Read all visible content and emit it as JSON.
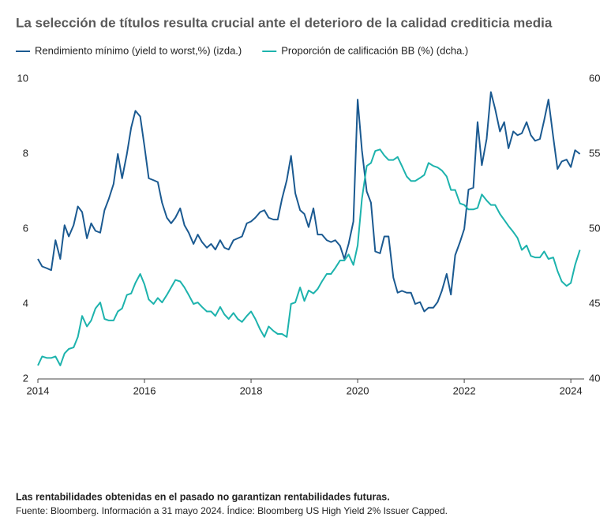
{
  "chart_data": {
    "type": "line",
    "title": "La selección de títulos resulta crucial ante el deterioro de la calidad crediticia media",
    "x": [
      2014,
      2014.08,
      2014.17,
      2014.25,
      2014.33,
      2014.42,
      2014.5,
      2014.58,
      2014.67,
      2014.75,
      2014.83,
      2014.92,
      2015,
      2015.08,
      2015.17,
      2015.25,
      2015.33,
      2015.42,
      2015.5,
      2015.58,
      2015.67,
      2015.75,
      2015.83,
      2015.92,
      2016,
      2016.08,
      2016.17,
      2016.25,
      2016.33,
      2016.42,
      2016.5,
      2016.58,
      2016.67,
      2016.75,
      2016.83,
      2016.92,
      2017,
      2017.08,
      2017.17,
      2017.25,
      2017.33,
      2017.42,
      2017.5,
      2017.58,
      2017.67,
      2017.75,
      2017.83,
      2017.92,
      2018,
      2018.08,
      2018.17,
      2018.25,
      2018.33,
      2018.42,
      2018.5,
      2018.58,
      2018.67,
      2018.75,
      2018.83,
      2018.92,
      2019,
      2019.08,
      2019.17,
      2019.25,
      2019.33,
      2019.42,
      2019.5,
      2019.58,
      2019.67,
      2019.75,
      2019.83,
      2019.92,
      2020,
      2020.08,
      2020.17,
      2020.25,
      2020.33,
      2020.42,
      2020.5,
      2020.58,
      2020.67,
      2020.75,
      2020.83,
      2020.92,
      2021,
      2021.08,
      2021.17,
      2021.25,
      2021.33,
      2021.42,
      2021.5,
      2021.58,
      2021.67,
      2021.75,
      2021.83,
      2021.92,
      2022,
      2022.08,
      2022.17,
      2022.25,
      2022.33,
      2022.42,
      2022.5,
      2022.58,
      2022.67,
      2022.75,
      2022.83,
      2022.92,
      2023,
      2023.08,
      2023.17,
      2023.25,
      2023.33,
      2023.42,
      2023.5,
      2023.58,
      2023.67,
      2023.75,
      2023.83,
      2023.92,
      2024,
      2024.08,
      2024.17
    ],
    "series": [
      {
        "name": "Rendimiento mínimo (yield to worst,%) (izda.)",
        "color": "#1b5a91",
        "axis": "y",
        "values": [
          5.2,
          5.0,
          4.95,
          4.9,
          5.7,
          5.2,
          6.1,
          5.8,
          6.1,
          6.6,
          6.45,
          5.75,
          6.15,
          5.95,
          5.9,
          6.5,
          6.8,
          7.2,
          8.0,
          7.35,
          8.0,
          8.7,
          9.15,
          9.0,
          8.2,
          7.35,
          7.3,
          7.25,
          6.7,
          6.3,
          6.15,
          6.3,
          6.55,
          6.1,
          5.9,
          5.6,
          5.85,
          5.65,
          5.5,
          5.6,
          5.45,
          5.7,
          5.5,
          5.45,
          5.7,
          5.75,
          5.8,
          6.15,
          6.2,
          6.3,
          6.45,
          6.5,
          6.3,
          6.25,
          6.25,
          6.8,
          7.3,
          7.95,
          6.95,
          6.5,
          6.4,
          6.05,
          6.55,
          5.85,
          5.85,
          5.7,
          5.65,
          5.7,
          5.55,
          5.2,
          5.6,
          6.2,
          9.45,
          8.1,
          7.0,
          6.7,
          5.4,
          5.35,
          5.8,
          5.8,
          4.7,
          4.3,
          4.35,
          4.3,
          4.3,
          4.0,
          4.05,
          3.8,
          3.9,
          3.9,
          4.05,
          4.35,
          4.8,
          4.25,
          5.3,
          5.65,
          6.0,
          7.05,
          7.1,
          8.85,
          7.7,
          8.4,
          9.65,
          9.2,
          8.6,
          8.85,
          8.15,
          8.6,
          8.5,
          8.55,
          8.85,
          8.5,
          8.35,
          8.4,
          8.9,
          9.45,
          8.45,
          7.6,
          7.8,
          7.85,
          7.65,
          8.1,
          8.0
        ]
      },
      {
        "name": "Proporción de calificación BB (%) (dcha.)",
        "color": "#1db3ad",
        "axis": "y2",
        "values": [
          40.9,
          41.5,
          41.4,
          41.4,
          41.5,
          40.9,
          41.7,
          42.0,
          42.1,
          42.8,
          44.2,
          43.5,
          43.9,
          44.7,
          45.1,
          44.0,
          43.9,
          43.9,
          44.5,
          44.7,
          45.6,
          45.7,
          46.4,
          47.0,
          46.3,
          45.3,
          45.0,
          45.4,
          45.1,
          45.6,
          46.1,
          46.6,
          46.5,
          46.1,
          45.6,
          45.0,
          45.1,
          44.8,
          44.5,
          44.5,
          44.2,
          44.8,
          44.3,
          44.0,
          44.4,
          44.0,
          43.8,
          44.2,
          44.5,
          44.0,
          43.3,
          42.8,
          43.5,
          43.2,
          43.0,
          43.0,
          42.8,
          45.0,
          45.1,
          46.1,
          45.2,
          45.9,
          45.7,
          46.0,
          46.5,
          47.0,
          47.0,
          47.4,
          47.9,
          47.9,
          48.3,
          47.6,
          48.9,
          52.0,
          54.2,
          54.4,
          55.2,
          55.3,
          54.9,
          54.6,
          54.6,
          54.8,
          54.2,
          53.5,
          53.2,
          53.2,
          53.4,
          53.6,
          54.4,
          54.2,
          54.1,
          53.9,
          53.5,
          52.6,
          52.6,
          51.7,
          51.6,
          51.3,
          51.3,
          51.4,
          52.3,
          51.9,
          51.6,
          51.6,
          51.0,
          50.6,
          50.2,
          49.8,
          49.4,
          48.6,
          48.9,
          48.2,
          48.1,
          48.1,
          48.5,
          48.0,
          48.1,
          47.2,
          46.5,
          46.2,
          46.4,
          47.6,
          48.6
        ]
      }
    ],
    "xlim": [
      2014,
      2024.25
    ],
    "xticks": [
      2014,
      2016,
      2018,
      2020,
      2022,
      2024
    ],
    "ylim": [
      2,
      10
    ],
    "yticks": [
      2,
      4,
      6,
      8,
      10
    ],
    "y2lim": [
      40,
      60
    ],
    "y2ticks": [
      40,
      45,
      50,
      55,
      60
    ],
    "grid": false,
    "legend": "top-left"
  },
  "footer": {
    "disclaimer": "Las rentabilidades obtenidas en el pasado no garantizan rentabilidades futuras.",
    "source": "Fuente: Bloomberg. Información a 31 mayo 2024. Índice: Bloomberg US High Yield 2% Issuer Capped."
  }
}
